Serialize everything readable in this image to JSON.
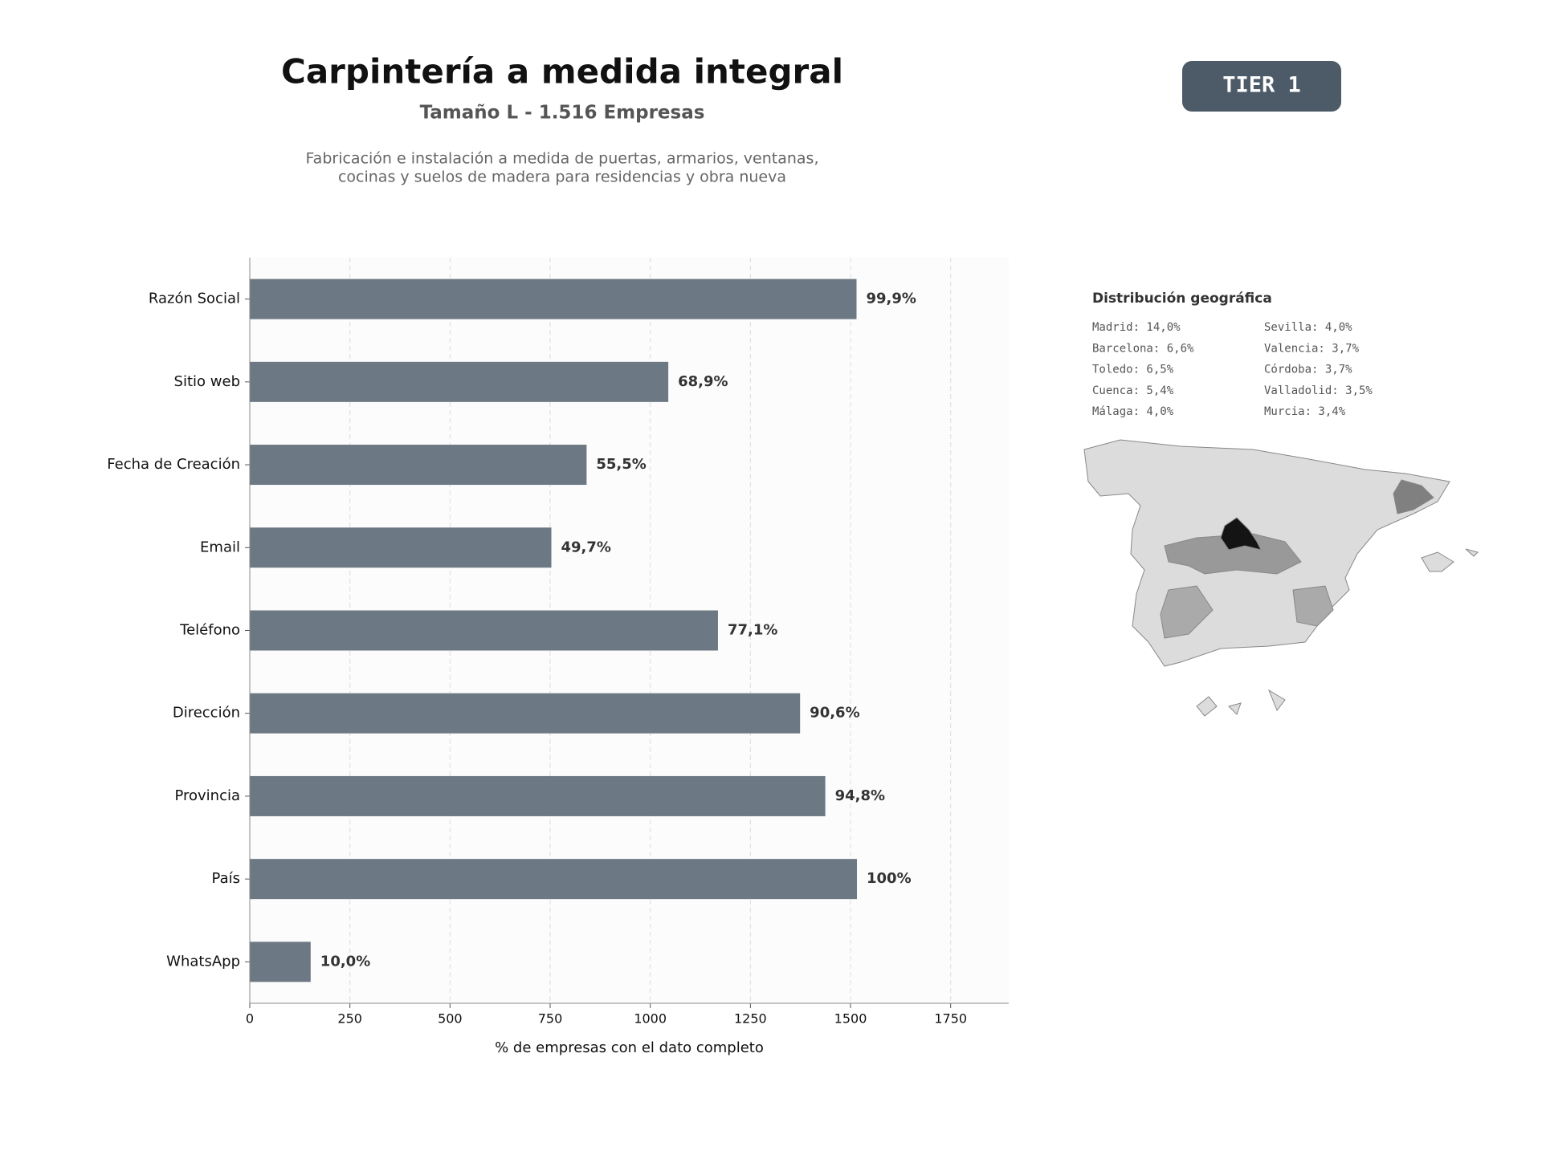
{
  "chart_data": {
    "type": "bar",
    "orientation": "horizontal",
    "title": "Carpintería a medida integral",
    "subtitle": "Tamaño L - 1.516 Empresas",
    "description": [
      "Fabricación e instalación a medida de puertas, armarios, ventanas,",
      "cocinas y suelos de madera para residencias y obra nueva"
    ],
    "badge": "TIER 1",
    "categories": [
      "Razón Social",
      "Sitio web",
      "Fecha de Creación",
      "Email",
      "Teléfono",
      "Dirección",
      "Provincia",
      "País",
      "WhatsApp"
    ],
    "values": [
      1515,
      1045,
      841,
      753,
      1169,
      1374,
      1437,
      1516,
      152
    ],
    "value_labels": [
      "99,9%",
      "68,9%",
      "55,5%",
      "49,7%",
      "77,1%",
      "90,6%",
      "94,8%",
      "100%",
      "10,0%"
    ],
    "color": "#6c7883",
    "xlabel": "% de empresas con el dato completo",
    "xlim": [
      0,
      1895
    ],
    "xticks": [
      0,
      250,
      500,
      750,
      1000,
      1250,
      1500,
      1750
    ],
    "grid": true,
    "geo": {
      "title": "Distribución geográfica",
      "items": [
        "Madrid: 14,0%",
        "Barcelona: 6,6%",
        "Toledo: 6,5%",
        "Cuenca: 5,4%",
        "Málaga: 4,0%",
        "Sevilla: 4,0%",
        "Valencia: 3,7%",
        "Córdoba: 3,7%",
        "Valladolid: 3,5%",
        "Murcia: 3,4%"
      ]
    }
  }
}
